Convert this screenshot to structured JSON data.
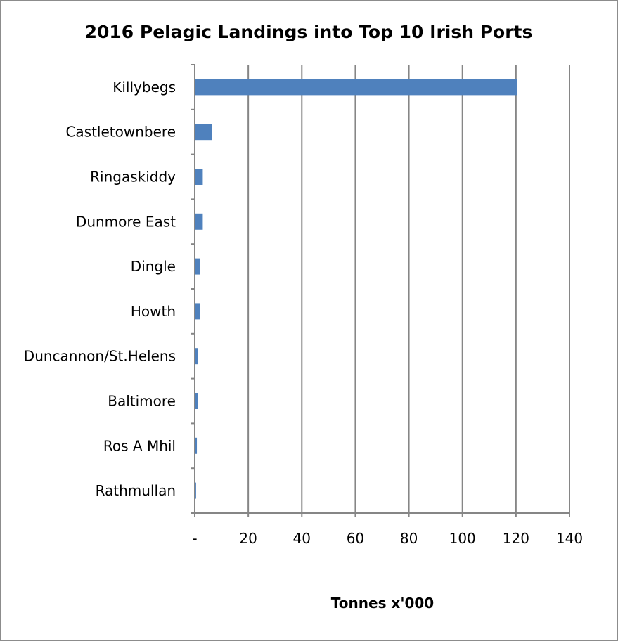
{
  "chart_data": {
    "type": "bar",
    "orientation": "horizontal",
    "title": "2016 Pelagic Landings into Top 10 Irish Ports",
    "xlabel": "Tonnes x'000",
    "ylabel": "",
    "categories": [
      "Killybegs",
      "Castletownbere",
      "Ringaskiddy",
      "Dunmore East",
      "Dingle",
      "Howth",
      "Duncannon/St.Helens",
      "Baltimore",
      "Ros A Mhil",
      "Rathmullan"
    ],
    "values": [
      120.5,
      6.5,
      3.0,
      3.0,
      2.0,
      2.0,
      1.2,
      1.2,
      0.8,
      0.5
    ],
    "xlim": [
      0,
      140
    ],
    "x_ticks": [
      0,
      20,
      40,
      60,
      80,
      100,
      120,
      140
    ],
    "x_tick_labels": [
      "-",
      "20",
      "40",
      "60",
      "80",
      "100",
      "120",
      "140"
    ],
    "grid": true,
    "legend": "none",
    "bar_color": "#4F81BD",
    "gridline_color": "#868686"
  }
}
